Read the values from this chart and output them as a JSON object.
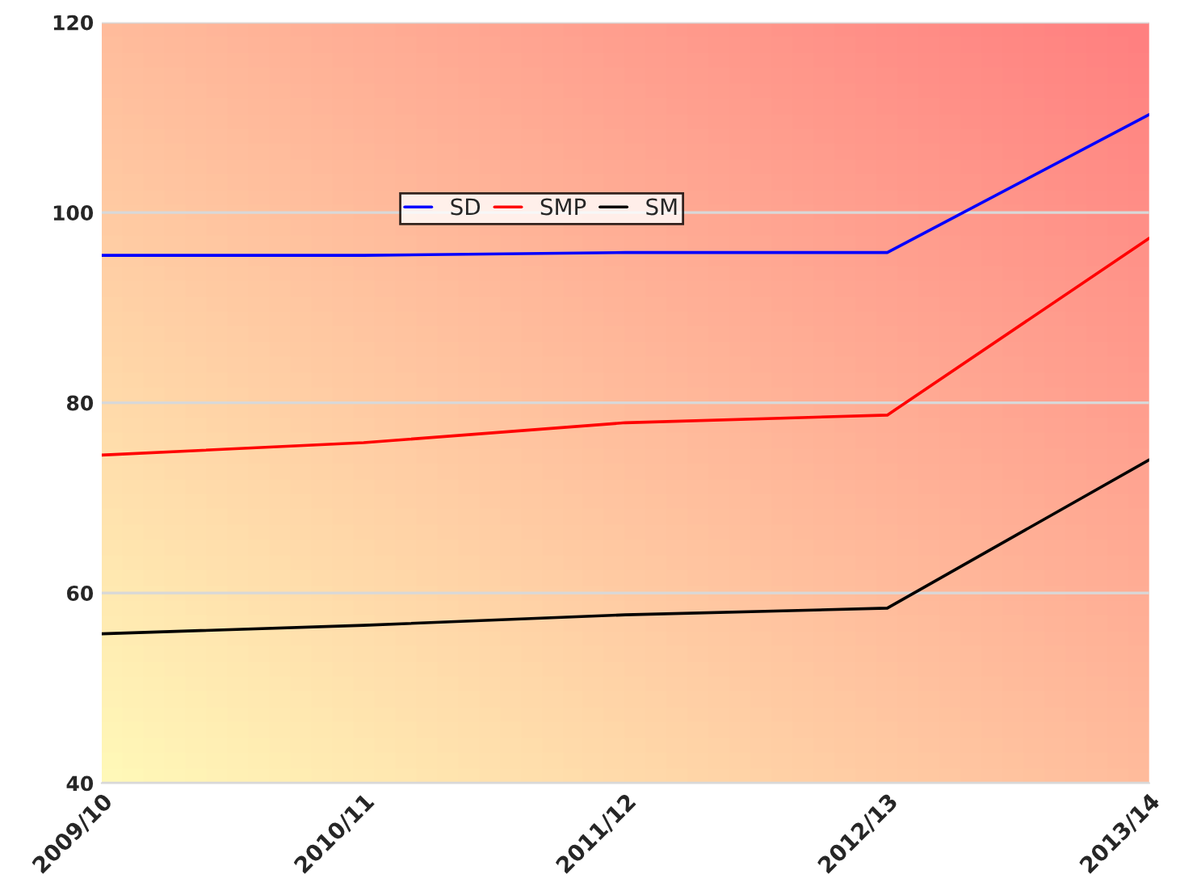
{
  "chart_data": {
    "type": "line",
    "categories": [
      "2009/10",
      "2010/11",
      "2011/12",
      "2012/13",
      "2013/14"
    ],
    "series": [
      {
        "name": "SD",
        "color": "#0000ff",
        "values": [
          95.5,
          95.5,
          95.8,
          95.8,
          110.3
        ]
      },
      {
        "name": "SMP",
        "color": "#ff0000",
        "values": [
          74.5,
          75.8,
          77.9,
          78.7,
          97.3
        ]
      },
      {
        "name": "SM",
        "color": "#000000",
        "values": [
          55.7,
          56.6,
          57.7,
          58.4,
          74.0
        ]
      }
    ],
    "ylim": [
      40,
      120
    ],
    "yticks": [
      40,
      60,
      80,
      100,
      120
    ],
    "grid": "y",
    "legend": "top"
  }
}
